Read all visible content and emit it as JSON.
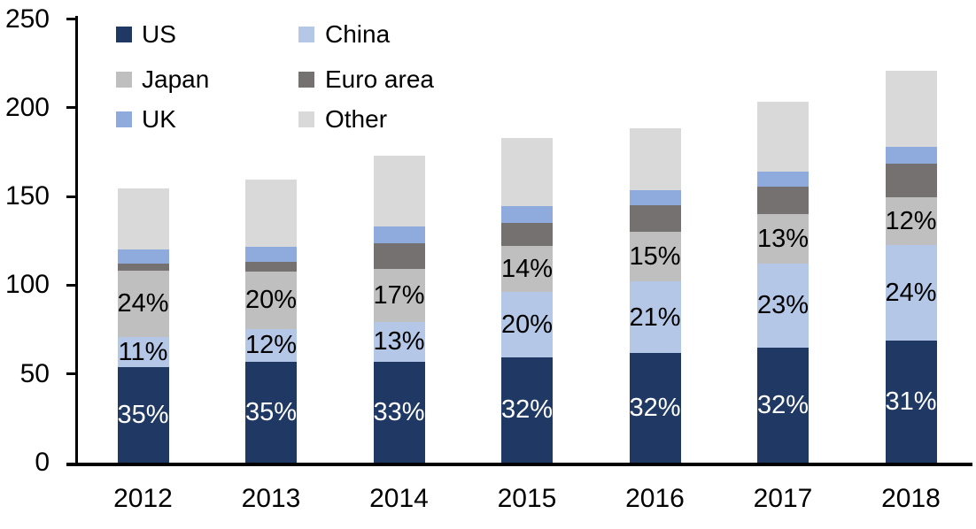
{
  "chart_data": {
    "type": "bar",
    "stacked": true,
    "title": "",
    "xlabel": "",
    "ylabel": "",
    "grid": false,
    "categories": [
      "2012",
      "2013",
      "2014",
      "2015",
      "2016",
      "2017",
      "2018"
    ],
    "series": [
      {
        "name": "US",
        "color": "#1F3864",
        "values": [
          54,
          57,
          57,
          59.5,
          62,
          65,
          69
        ],
        "labels": [
          "35%",
          "35%",
          "33%",
          "32%",
          "32%",
          "32%",
          "31%"
        ],
        "label_color": "#FFFFFF"
      },
      {
        "name": "China",
        "color": "#B4C7E7",
        "values": [
          17,
          18.5,
          22.5,
          36.5,
          40,
          47,
          53.5
        ],
        "labels": [
          "11%",
          "12%",
          "13%",
          "20%",
          "21%",
          "23%",
          "24%"
        ],
        "label_color": "#000000"
      },
      {
        "name": "Japan",
        "color": "#BFBFBF",
        "values": [
          37,
          32,
          29.5,
          26,
          28,
          28,
          27
        ],
        "labels": [
          "24%",
          "20%",
          "17%",
          "14%",
          "15%",
          "13%",
          "12%"
        ],
        "label_color": "#000000"
      },
      {
        "name": "Euro area",
        "color": "#767171",
        "values": [
          4,
          5.5,
          14.5,
          13,
          15,
          15.5,
          19
        ],
        "labels": null,
        "label_color": null
      },
      {
        "name": "UK",
        "color": "#8FAADC",
        "values": [
          8,
          8.5,
          9.5,
          9.5,
          8.5,
          8.5,
          9.5
        ],
        "labels": null,
        "label_color": null
      },
      {
        "name": "Other",
        "color": "#D9D9D9",
        "values": [
          34.5,
          38,
          40,
          38.5,
          35,
          39.5,
          43
        ],
        "labels": null,
        "label_color": null
      }
    ],
    "approx_totals": [
      154.5,
      159.5,
      173,
      183,
      188.5,
      203.5,
      221
    ],
    "ylim": [
      0,
      250
    ],
    "yticks": [
      0,
      50,
      100,
      150,
      200,
      250
    ],
    "ytick_labels": [
      "0",
      "50",
      "100",
      "150",
      "200",
      "250"
    ],
    "legend": {
      "position": "top-left",
      "columns": 2,
      "items_order": [
        "US",
        "China",
        "Japan",
        "Euro area",
        "UK",
        "Other"
      ]
    }
  },
  "colors": {
    "axis": "#000000",
    "background": "#FFFFFF"
  }
}
